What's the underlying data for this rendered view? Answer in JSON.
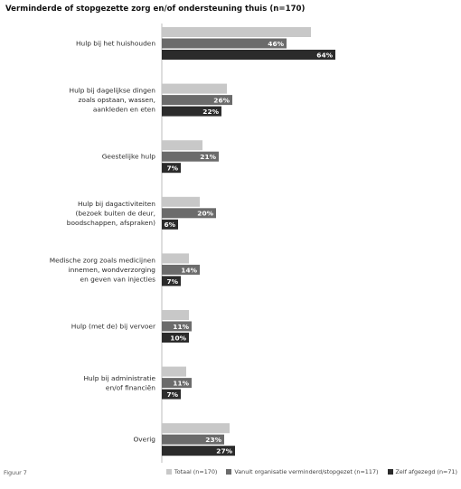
{
  "chart_data": {
    "type": "bar",
    "orientation": "horizontal",
    "title": "Verminderde of stopgezette zorg en/of ondersteuning thuis  (n=170)",
    "categories": [
      "Hulp bij het huishouden",
      "Hulp bij dagelijkse dingen zoals opstaan, wassen, aankleden en eten",
      "Geestelijke hulp",
      "Hulp bij dagactiviteiten (bezoek buiten de deur, boodschappen, afspraken)",
      "Medische zorg zoals medicijnen innemen, wondverzorging en geven van injecties",
      "Hulp (met de) bij vervoer",
      "Hulp bij administratie en/of financiën",
      "Overig"
    ],
    "category_lines": [
      [
        "Hulp bij het huishouden"
      ],
      [
        "Hulp bij dagelijkse dingen",
        "zoals opstaan, wassen,",
        "aankleden en eten"
      ],
      [
        "Geestelijke hulp"
      ],
      [
        "Hulp bij dagactiviteiten",
        "(bezoek buiten de deur,",
        "boodschappen, afspraken)"
      ],
      [
        "Medische zorg zoals medicijnen",
        "innemen, wondverzorging",
        "en geven van injecties"
      ],
      [
        "Hulp (met de) bij vervoer"
      ],
      [
        "Hulp bij administratie",
        "en/of financiën"
      ],
      [
        "Overig"
      ]
    ],
    "series": [
      {
        "name": "Totaal (n=170)",
        "color": "#c8c8c8",
        "values": [
          55,
          24,
          15,
          14,
          10,
          10,
          9,
          25
        ]
      },
      {
        "name": "Vanuit organisatie verminderd/stopgezet (n=117)",
        "color": "#6b6b6b",
        "values": [
          46,
          26,
          21,
          20,
          14,
          11,
          11,
          23
        ]
      },
      {
        "name": "Zelf afgezegd (n=71)",
        "color": "#2b2b2b",
        "values": [
          64,
          22,
          7,
          6,
          7,
          10,
          7,
          27
        ]
      }
    ],
    "data_labels": [
      [
        "",
        "46%",
        "64%"
      ],
      [
        "",
        "26%",
        "22%"
      ],
      [
        "",
        "21%",
        "7%"
      ],
      [
        "",
        "20%",
        "6%"
      ],
      [
        "",
        "14%",
        "7%"
      ],
      [
        "",
        "11%",
        "10%"
      ],
      [
        "",
        "11%",
        "7%"
      ],
      [
        "",
        "23%",
        "27%"
      ]
    ],
    "xlim": [
      0,
      100
    ],
    "legend_position": "bottom"
  },
  "footer": {
    "note": "Figuur 7"
  }
}
